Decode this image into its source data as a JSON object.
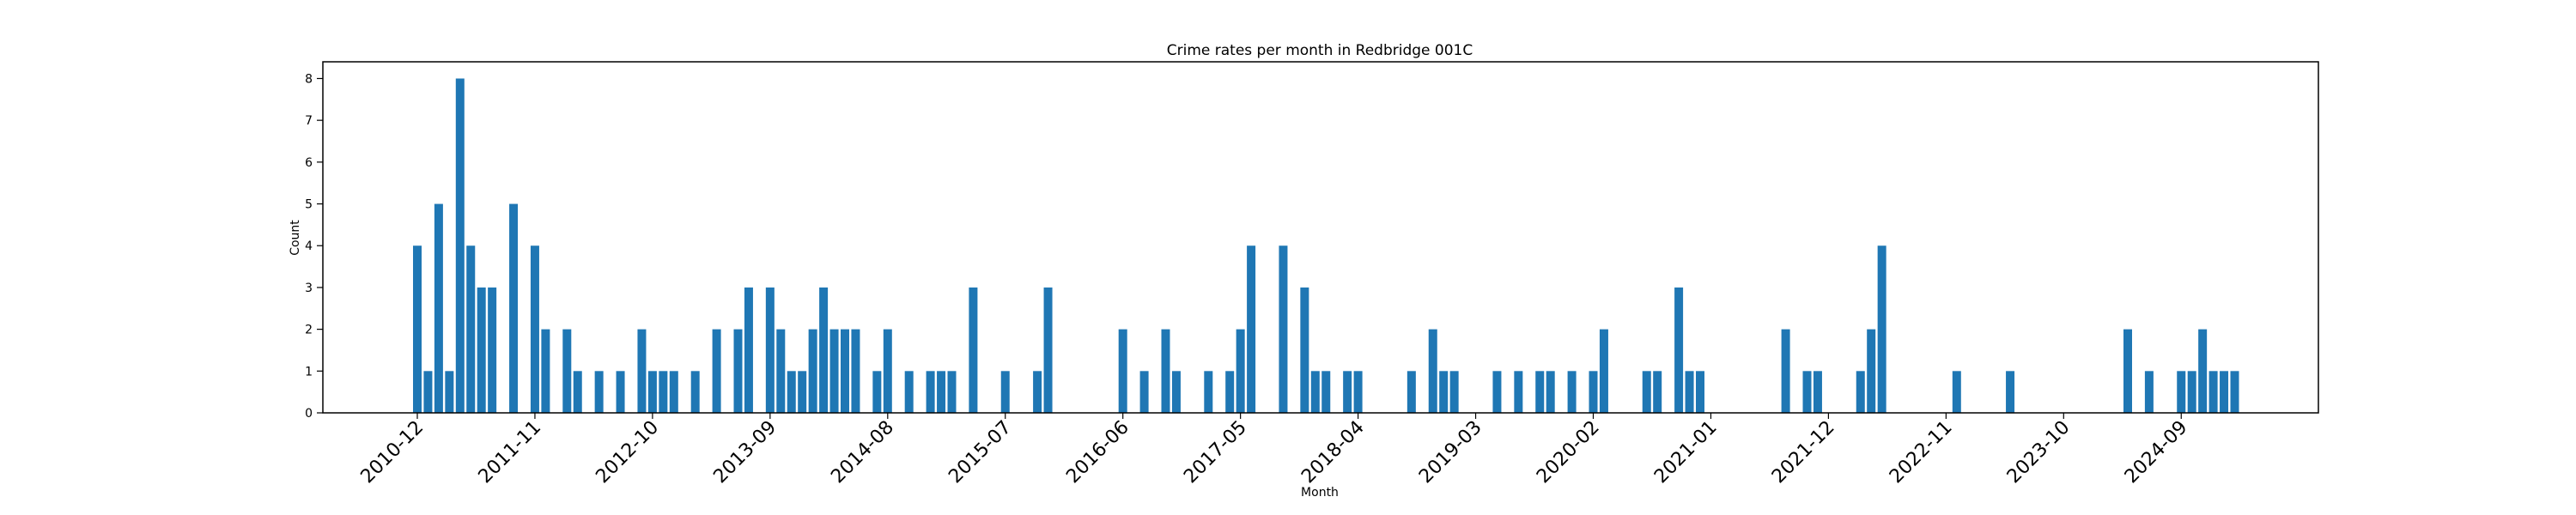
{
  "chart_data": {
    "type": "bar",
    "title": "Crime rates per month in Redbridge 001C",
    "xlabel": "Month",
    "ylabel": "Count",
    "ylim": [
      0,
      8.4
    ],
    "yticks": [
      0,
      1,
      2,
      3,
      4,
      5,
      6,
      7,
      8
    ],
    "xticks": [
      "2010-12",
      "2011-11",
      "2012-10",
      "2013-09",
      "2014-08",
      "2015-07",
      "2016-06",
      "2017-05",
      "2018-04",
      "2019-03",
      "2020-02",
      "2021-01",
      "2021-12",
      "2022-11",
      "2023-10",
      "2024-09"
    ],
    "grid": false,
    "bar_color": "#1f77b4",
    "categories": [
      "2010-12",
      "2011-01",
      "2011-02",
      "2011-03",
      "2011-04",
      "2011-05",
      "2011-06",
      "2011-07",
      "2011-09",
      "2011-11",
      "2011-12",
      "2012-02",
      "2012-03",
      "2012-05",
      "2012-07",
      "2012-09",
      "2012-10",
      "2012-11",
      "2012-12",
      "2013-02",
      "2013-04",
      "2013-06",
      "2013-07",
      "2013-09",
      "2013-10",
      "2013-11",
      "2013-12",
      "2014-01",
      "2014-02",
      "2014-03",
      "2014-04",
      "2014-05",
      "2014-07",
      "2014-08",
      "2014-10",
      "2014-12",
      "2015-01",
      "2015-02",
      "2015-04",
      "2015-07",
      "2015-10",
      "2015-11",
      "2016-06",
      "2016-08",
      "2016-10",
      "2016-11",
      "2017-02",
      "2017-04",
      "2017-05",
      "2017-06",
      "2017-09",
      "2017-11",
      "2017-12",
      "2018-01",
      "2018-03",
      "2018-04",
      "2018-09",
      "2018-11",
      "2018-12",
      "2019-01",
      "2019-05",
      "2019-07",
      "2019-09",
      "2019-10",
      "2019-12",
      "2020-02",
      "2020-03",
      "2020-07",
      "2020-08",
      "2020-10",
      "2020-11",
      "2020-12",
      "2021-08",
      "2021-10",
      "2021-11",
      "2022-03",
      "2022-04",
      "2022-05",
      "2022-12",
      "2023-05",
      "2024-04",
      "2024-06",
      "2024-09",
      "2024-10",
      "2024-11",
      "2024-12",
      "2025-01",
      "2025-02"
    ],
    "values": [
      4,
      1,
      5,
      1,
      8,
      4,
      3,
      3,
      5,
      4,
      2,
      2,
      1,
      1,
      1,
      2,
      1,
      1,
      1,
      1,
      2,
      2,
      3,
      3,
      2,
      1,
      1,
      2,
      3,
      2,
      2,
      2,
      1,
      2,
      1,
      1,
      1,
      1,
      3,
      1,
      1,
      3,
      2,
      1,
      2,
      1,
      1,
      1,
      2,
      4,
      4,
      3,
      1,
      1,
      1,
      1,
      1,
      2,
      1,
      1,
      1,
      1,
      1,
      1,
      1,
      1,
      2,
      1,
      1,
      3,
      1,
      1,
      2,
      1,
      1,
      1,
      2,
      4,
      1,
      1,
      2,
      1,
      1,
      1,
      2,
      1,
      1,
      1
    ]
  }
}
